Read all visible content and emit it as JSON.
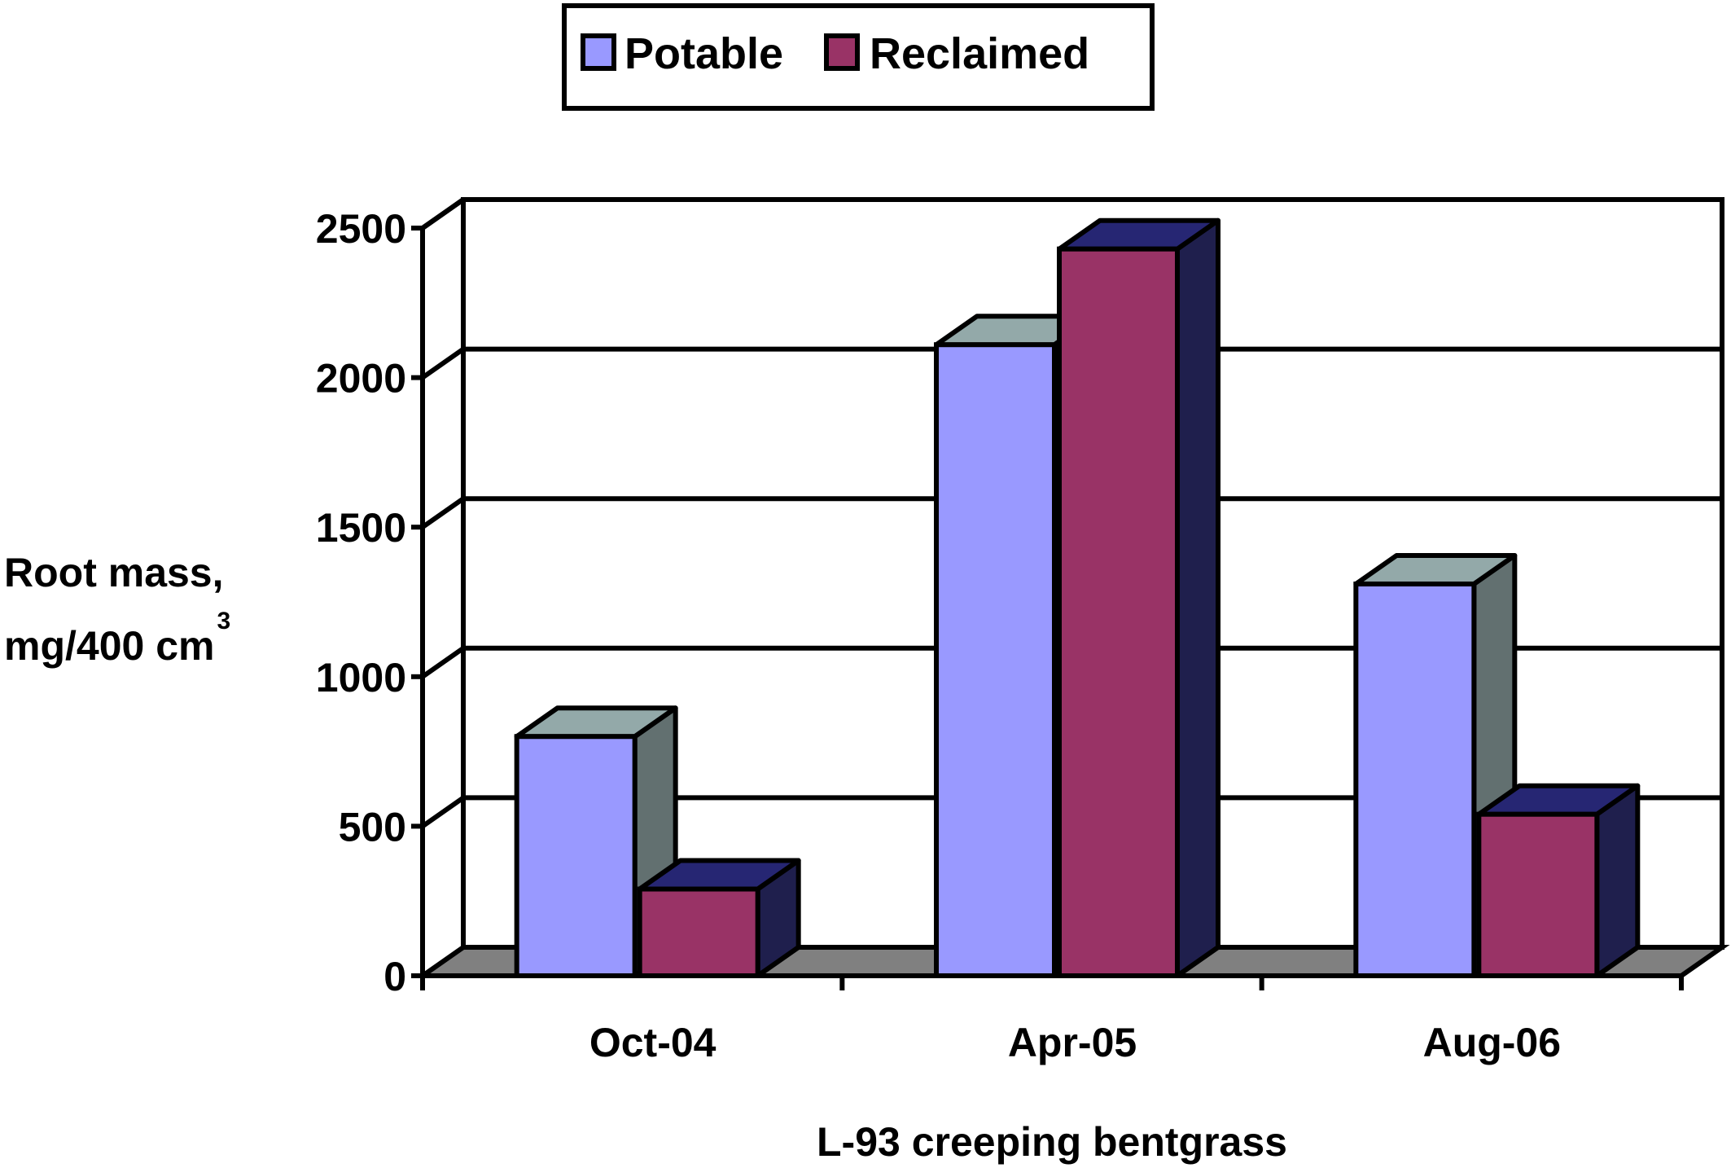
{
  "chart_data": {
    "type": "bar",
    "style": "3d-clustered-column",
    "categories": [
      "Oct-04",
      "Apr-05",
      "Aug-06"
    ],
    "series": [
      {
        "name": "Potable",
        "values": [
          800,
          2110,
          1310
        ],
        "colors": {
          "front": "#9999ff",
          "top": "#93a9a9",
          "side": "#627070"
        }
      },
      {
        "name": "Reclaimed",
        "values": [
          290,
          2430,
          540
        ],
        "colors": {
          "front": "#993366",
          "top": "#262673",
          "side": "#1f1f4d"
        }
      }
    ],
    "title": "",
    "xlabel": "L-93 creeping bentgrass",
    "ylabel_line1": "Root mass,",
    "ylabel_line2": "mg/400 cm",
    "ylabel_sup": "3",
    "ylim": [
      0,
      2500
    ],
    "yticks": [
      0,
      500,
      1000,
      1500,
      2000,
      2500
    ],
    "grid": true,
    "legend_position": "top-center",
    "floor_color": "#808080"
  }
}
